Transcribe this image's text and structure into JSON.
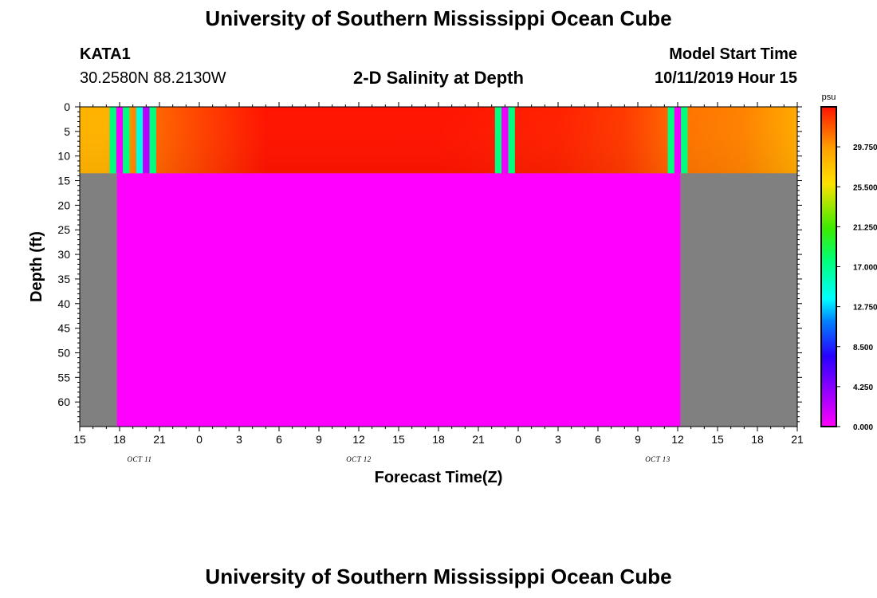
{
  "header": {
    "title": "University of Southern Mississippi Ocean Cube",
    "station": "KATA1",
    "coords": "30.2580N 88.2130W",
    "plot_title": "2-D Salinity at Depth",
    "model_start_label": "Model Start Time",
    "model_start_value": "10/11/2019 Hour 15",
    "footer_title": "University of Southern Mississippi Ocean Cube"
  },
  "colors": {
    "no_data": "#808080",
    "zero": "#ff00ff",
    "cyan_band": "#00ffff",
    "green_band": "#19e68c",
    "magenta_band": "#c800ff",
    "orange": "#ffa500",
    "red": "#ff1a00"
  },
  "chart_data": {
    "type": "heatmap",
    "xlabel": "Forecast Time(Z)",
    "ylabel": "Depth (ft)",
    "x_range_hours": [
      0,
      54
    ],
    "x_tick_labels": [
      "15",
      "18",
      "21",
      "0",
      "3",
      "6",
      "9",
      "12",
      "15",
      "18",
      "21",
      "0",
      "3",
      "6",
      "9",
      "12",
      "15",
      "18",
      "21"
    ],
    "y_range": [
      0,
      65
    ],
    "y_ticks": [
      0,
      5,
      10,
      15,
      20,
      25,
      30,
      35,
      40,
      45,
      50,
      55,
      60
    ],
    "day_labels": [
      {
        "label": "OCT 11",
        "hour": 4.5
      },
      {
        "label": "OCT 12",
        "hour": 21
      },
      {
        "label": "OCT 13",
        "hour": 43.5
      }
    ],
    "colorbar": {
      "unit": "psu",
      "range": [
        0,
        34
      ],
      "tick_values": [
        0.0,
        4.25,
        8.5,
        12.75,
        17.0,
        21.25,
        25.5,
        29.75
      ],
      "tick_labels": [
        "0.000",
        "4.250",
        "8.500",
        "12.750",
        "17.000",
        "21.250",
        "25.500",
        "29.750"
      ]
    },
    "surface_layer_depth": 13.5,
    "data_hours": [
      2.8,
      45.2
    ],
    "surface_stripes": [
      {
        "start": 2.25,
        "end": 2.75,
        "value": 17.5
      },
      {
        "start": 2.75,
        "end": 3.25,
        "value": 0.5
      },
      {
        "start": 3.25,
        "end": 3.75,
        "value": 17.5
      },
      {
        "start": 4.25,
        "end": 4.75,
        "value": 14.5
      },
      {
        "start": 4.75,
        "end": 5.25,
        "value": 2.5
      },
      {
        "start": 5.25,
        "end": 5.75,
        "value": 17.5
      },
      {
        "start": 31.25,
        "end": 31.75,
        "value": 17.5
      },
      {
        "start": 31.75,
        "end": 32.25,
        "value": 0.5
      },
      {
        "start": 32.25,
        "end": 32.75,
        "value": 17.5
      },
      {
        "start": 44.25,
        "end": 44.75,
        "value": 17.5
      },
      {
        "start": 44.75,
        "end": 45.25,
        "value": 0.5
      },
      {
        "start": 45.25,
        "end": 45.75,
        "value": 17.5
      }
    ],
    "surface_profile": [
      {
        "hour": 0,
        "value": 28.5
      },
      {
        "hour": 2,
        "value": 28.5
      },
      {
        "hour": 6,
        "value": 31.5
      },
      {
        "hour": 9,
        "value": 32.5
      },
      {
        "hour": 14,
        "value": 34.0
      },
      {
        "hour": 27,
        "value": 34.0
      },
      {
        "hour": 31,
        "value": 33.8
      },
      {
        "hour": 36,
        "value": 33.6
      },
      {
        "hour": 41,
        "value": 32.8
      },
      {
        "hour": 45.5,
        "value": 31.0
      },
      {
        "hour": 50,
        "value": 30.5
      },
      {
        "hour": 54,
        "value": 29.0
      }
    ]
  }
}
